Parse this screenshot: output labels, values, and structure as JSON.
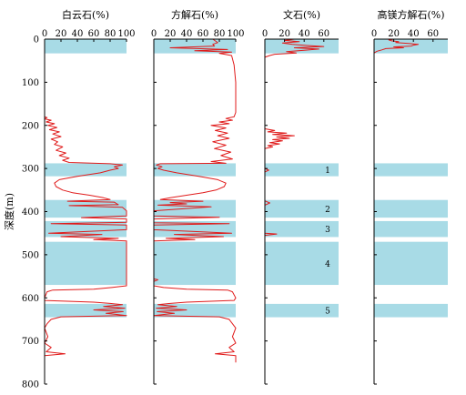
{
  "chart_data": {
    "type": "line",
    "y_axis": {
      "label": "深度(m)",
      "range": [
        0,
        800
      ],
      "ticks": [
        0,
        100,
        200,
        300,
        400,
        500,
        600,
        700,
        800
      ],
      "inverted": true
    },
    "zones": [
      {
        "label": "",
        "top": 0,
        "bottom": 33
      },
      {
        "label": "1",
        "top": 288,
        "bottom": 318
      },
      {
        "label": "2",
        "top": 373,
        "bottom": 414
      },
      {
        "label": "3",
        "top": 422,
        "bottom": 459
      },
      {
        "label": "4",
        "top": 470,
        "bottom": 570
      },
      {
        "label": "5",
        "top": 614,
        "bottom": 645
      }
    ],
    "panels": [
      {
        "title": "白云石(%)",
        "xlim": [
          0,
          100
        ],
        "xticks": [
          0,
          20,
          40,
          60,
          80,
          100
        ],
        "series": [
          [
            0,
            0
          ],
          [
            0,
            180
          ],
          [
            3,
            182
          ],
          [
            0,
            185
          ],
          [
            8,
            188
          ],
          [
            2,
            192
          ],
          [
            12,
            196
          ],
          [
            4,
            200
          ],
          [
            15,
            205
          ],
          [
            6,
            210
          ],
          [
            18,
            215
          ],
          [
            10,
            220
          ],
          [
            20,
            226
          ],
          [
            8,
            232
          ],
          [
            16,
            238
          ],
          [
            12,
            244
          ],
          [
            22,
            250
          ],
          [
            14,
            258
          ],
          [
            26,
            264
          ],
          [
            18,
            270
          ],
          [
            30,
            276
          ],
          [
            22,
            281
          ],
          [
            30,
            286
          ],
          [
            80,
            289
          ],
          [
            95,
            292
          ],
          [
            85,
            296
          ],
          [
            90,
            300
          ],
          [
            80,
            304
          ],
          [
            68,
            310
          ],
          [
            40,
            318
          ],
          [
            18,
            326
          ],
          [
            12,
            334
          ],
          [
            14,
            342
          ],
          [
            22,
            350
          ],
          [
            34,
            356
          ],
          [
            55,
            362
          ],
          [
            72,
            368
          ],
          [
            80,
            372
          ],
          [
            28,
            376
          ],
          [
            85,
            378
          ],
          [
            90,
            384
          ],
          [
            30,
            386
          ],
          [
            95,
            390
          ],
          [
            100,
            398
          ],
          [
            100,
            410
          ],
          [
            45,
            414
          ],
          [
            100,
            417
          ],
          [
            100,
            425
          ],
          [
            8,
            428
          ],
          [
            100,
            431
          ],
          [
            100,
            442
          ],
          [
            5,
            450
          ],
          [
            70,
            453
          ],
          [
            20,
            458
          ],
          [
            90,
            462
          ],
          [
            60,
            465
          ],
          [
            100,
            468
          ],
          [
            100,
            478
          ],
          [
            100,
            492
          ],
          [
            100,
            506
          ],
          [
            100,
            520
          ],
          [
            100,
            534
          ],
          [
            100,
            548
          ],
          [
            100,
            562
          ],
          [
            100,
            572
          ],
          [
            82,
            576
          ],
          [
            60,
            580
          ],
          [
            10,
            582
          ],
          [
            3,
            586
          ],
          [
            0,
            600
          ],
          [
            0,
            606
          ],
          [
            60,
            610
          ],
          [
            80,
            613
          ],
          [
            95,
            616
          ],
          [
            72,
            620
          ],
          [
            98,
            624
          ],
          [
            60,
            628
          ],
          [
            96,
            632
          ],
          [
            75,
            636
          ],
          [
            100,
            641
          ],
          [
            20,
            644
          ],
          [
            8,
            650
          ],
          [
            3,
            660
          ],
          [
            0,
            670
          ],
          [
            4,
            690
          ],
          [
            0,
            705
          ],
          [
            8,
            715
          ],
          [
            2,
            725
          ],
          [
            25,
            730
          ],
          [
            0,
            734
          ],
          [
            0,
            750
          ]
        ]
      },
      {
        "title": "方解石(%)",
        "xlim": [
          0,
          100
        ],
        "xticks": [
          0,
          20,
          40,
          60,
          80,
          100
        ],
        "series": [
          [
            72,
            0
          ],
          [
            75,
            4
          ],
          [
            78,
            8
          ],
          [
            72,
            12
          ],
          [
            74,
            16
          ],
          [
            20,
            20
          ],
          [
            90,
            24
          ],
          [
            50,
            27
          ],
          [
            95,
            30
          ],
          [
            80,
            33
          ],
          [
            95,
            38
          ],
          [
            98,
            60
          ],
          [
            100,
            100
          ],
          [
            100,
            170
          ],
          [
            98,
            180
          ],
          [
            88,
            184
          ],
          [
            96,
            188
          ],
          [
            80,
            192
          ],
          [
            92,
            196
          ],
          [
            70,
            200
          ],
          [
            88,
            206
          ],
          [
            75,
            212
          ],
          [
            90,
            218
          ],
          [
            78,
            224
          ],
          [
            92,
            230
          ],
          [
            72,
            238
          ],
          [
            88,
            246
          ],
          [
            74,
            254
          ],
          [
            94,
            262
          ],
          [
            82,
            270
          ],
          [
            96,
            278
          ],
          [
            70,
            284
          ],
          [
            88,
            288
          ],
          [
            8,
            289
          ],
          [
            3,
            292
          ],
          [
            10,
            296
          ],
          [
            5,
            300
          ],
          [
            12,
            304
          ],
          [
            28,
            310
          ],
          [
            55,
            318
          ],
          [
            78,
            326
          ],
          [
            88,
            334
          ],
          [
            86,
            342
          ],
          [
            76,
            350
          ],
          [
            60,
            356
          ],
          [
            40,
            362
          ],
          [
            20,
            368
          ],
          [
            8,
            372
          ],
          [
            60,
            376
          ],
          [
            20,
            379
          ],
          [
            40,
            382
          ],
          [
            5,
            385
          ],
          [
            70,
            389
          ],
          [
            0,
            398
          ],
          [
            0,
            410
          ],
          [
            80,
            413
          ],
          [
            0,
            417
          ],
          [
            0,
            426
          ],
          [
            92,
            428
          ],
          [
            0,
            431
          ],
          [
            0,
            442
          ],
          [
            95,
            450
          ],
          [
            25,
            453
          ],
          [
            85,
            458
          ],
          [
            15,
            462
          ],
          [
            50,
            465
          ],
          [
            0,
            468
          ],
          [
            0,
            480
          ],
          [
            0,
            500
          ],
          [
            0,
            520
          ],
          [
            0,
            540
          ],
          [
            0,
            556
          ],
          [
            5,
            558
          ],
          [
            0,
            562
          ],
          [
            0,
            572
          ],
          [
            12,
            576
          ],
          [
            40,
            580
          ],
          [
            90,
            582
          ],
          [
            96,
            586
          ],
          [
            100,
            600
          ],
          [
            98,
            606
          ],
          [
            40,
            610
          ],
          [
            20,
            613
          ],
          [
            5,
            616
          ],
          [
            28,
            620
          ],
          [
            3,
            624
          ],
          [
            40,
            628
          ],
          [
            4,
            632
          ],
          [
            25,
            636
          ],
          [
            0,
            641
          ],
          [
            80,
            644
          ],
          [
            92,
            650
          ],
          [
            96,
            660
          ],
          [
            100,
            670
          ],
          [
            96,
            690
          ],
          [
            100,
            705
          ],
          [
            92,
            715
          ],
          [
            98,
            725
          ],
          [
            75,
            730
          ],
          [
            100,
            734
          ],
          [
            100,
            750
          ]
        ]
      },
      {
        "title": "文石(%)",
        "xlim": [
          0,
          75
        ],
        "xticks": [
          0,
          20,
          40,
          60
        ],
        "series": [
          [
            30,
            0
          ],
          [
            20,
            3
          ],
          [
            35,
            6
          ],
          [
            18,
            9
          ],
          [
            28,
            12
          ],
          [
            45,
            15
          ],
          [
            60,
            17
          ],
          [
            30,
            20
          ],
          [
            55,
            23
          ],
          [
            40,
            26
          ],
          [
            22,
            29
          ],
          [
            32,
            32
          ],
          [
            10,
            35
          ],
          [
            5,
            38
          ],
          [
            0,
            42
          ],
          [
            0,
            180
          ],
          [
            0,
            208
          ],
          [
            10,
            212
          ],
          [
            3,
            215
          ],
          [
            22,
            218
          ],
          [
            8,
            221
          ],
          [
            30,
            224
          ],
          [
            12,
            227
          ],
          [
            25,
            230
          ],
          [
            8,
            233
          ],
          [
            18,
            236
          ],
          [
            5,
            240
          ],
          [
            15,
            243
          ],
          [
            3,
            247
          ],
          [
            8,
            250
          ],
          [
            0,
            254
          ],
          [
            0,
            300
          ],
          [
            4,
            304
          ],
          [
            0,
            308
          ],
          [
            0,
            375
          ],
          [
            5,
            380
          ],
          [
            0,
            385
          ],
          [
            0,
            450
          ],
          [
            12,
            452
          ],
          [
            0,
            455
          ],
          [
            0,
            750
          ]
        ]
      },
      {
        "title": "高镁方解石(%)",
        "xlim": [
          0,
          75
        ],
        "xticks": [
          0,
          20,
          40,
          60
        ],
        "series": [
          [
            20,
            0
          ],
          [
            15,
            2
          ],
          [
            18,
            4
          ],
          [
            25,
            6
          ],
          [
            22,
            8
          ],
          [
            35,
            10
          ],
          [
            45,
            12
          ],
          [
            40,
            14
          ],
          [
            38,
            16
          ],
          [
            20,
            18
          ],
          [
            30,
            20
          ],
          [
            12,
            22
          ],
          [
            8,
            25
          ],
          [
            3,
            28
          ],
          [
            0,
            32
          ],
          [
            0,
            750
          ]
        ]
      }
    ]
  }
}
